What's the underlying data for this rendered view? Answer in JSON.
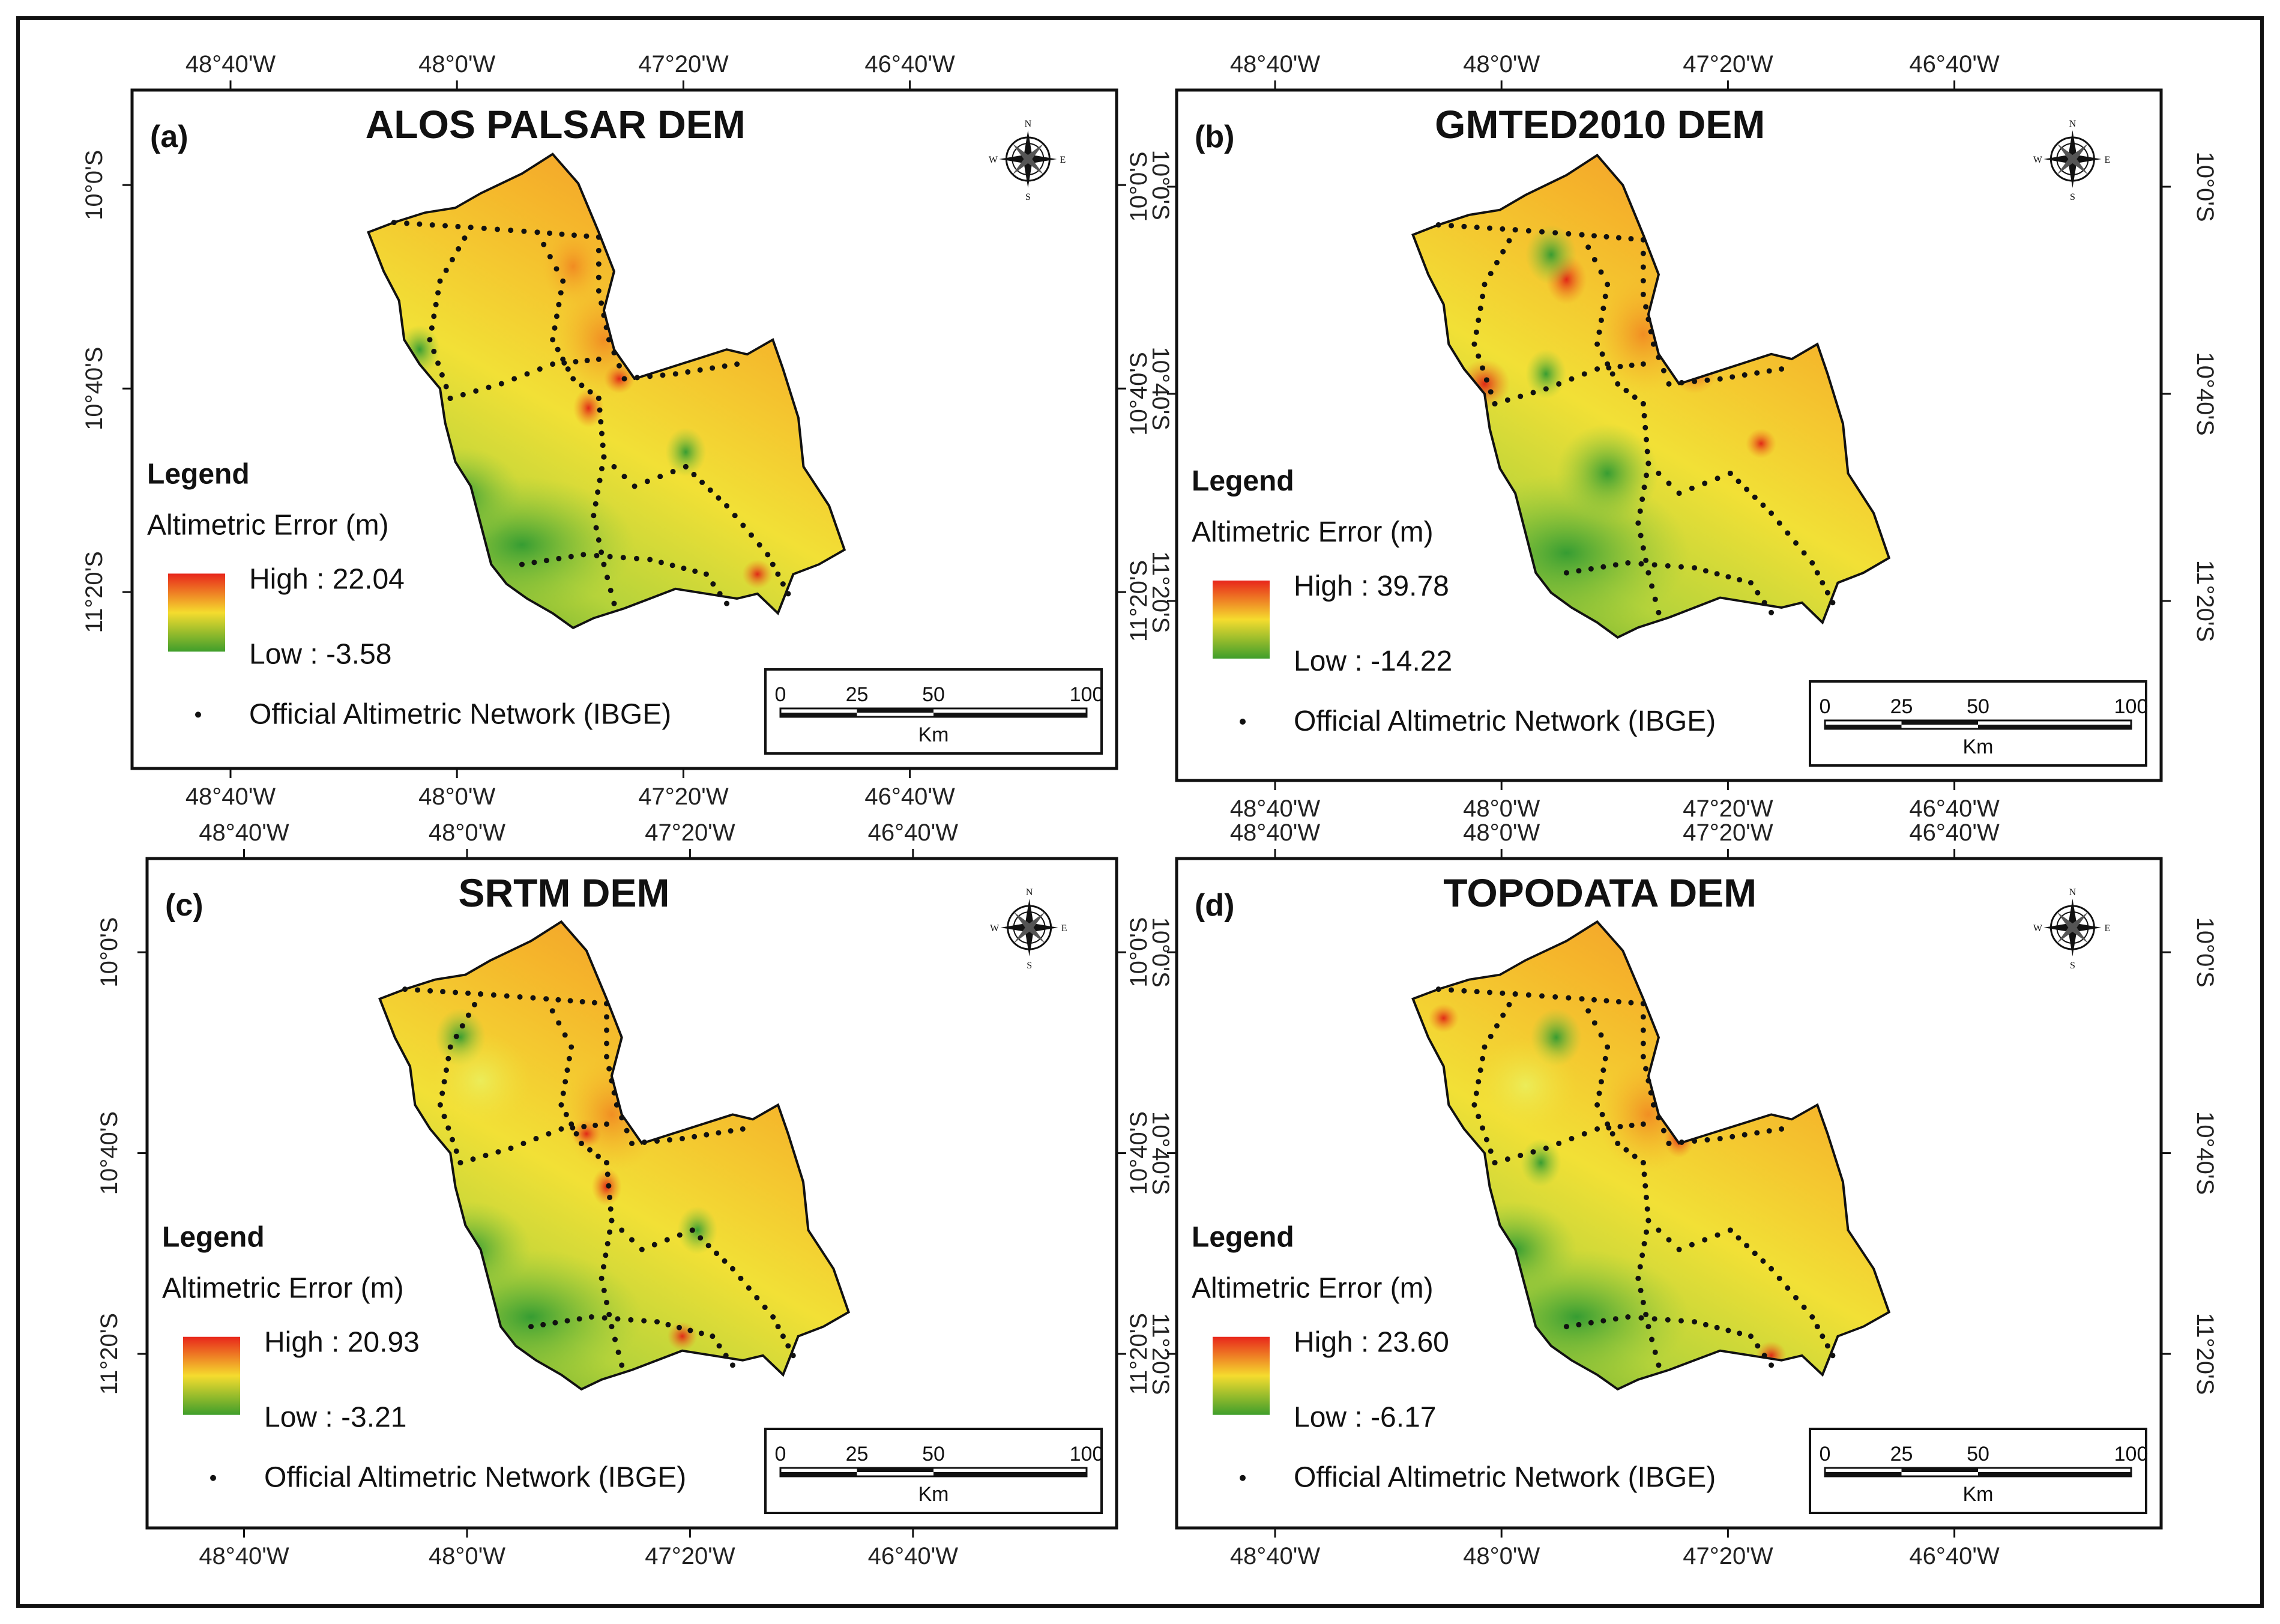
{
  "colors": {
    "high": "#e8261b",
    "mid": "#f5dc2e",
    "low": "#3f9e2b",
    "border": "#111111"
  },
  "legend": {
    "title": "Legend",
    "subtitle": "Altimetric Error (m)",
    "network_label": "Official Altimetric Network (IBGE)"
  },
  "axes": {
    "lon_labels": [
      "48°40'W",
      "48°0'W",
      "47°20'W",
      "46°40'W"
    ],
    "lat_labels": [
      "10°0'S",
      "10°40'S",
      "11°20'S"
    ]
  },
  "scale_bar": {
    "ticks": [
      "0",
      "25",
      "50",
      "100"
    ],
    "unit": "Km"
  },
  "north_arrow": {
    "n": "N",
    "s": "S",
    "e": "E",
    "w": "W"
  },
  "panels": [
    {
      "letter": "(a)",
      "title": "ALOS PALSAR DEM",
      "high": "High : 22.04",
      "low": "Low : -3.58",
      "icon": "north-arrow-icon"
    },
    {
      "letter": "(b)",
      "title": "GMTED2010 DEM",
      "high": "High : 39.78",
      "low": "Low : -14.22",
      "icon": "north-arrow-icon"
    },
    {
      "letter": "(c)",
      "title": "SRTM DEM",
      "high": "High : 20.93",
      "low": "Low : -3.21",
      "icon": "north-arrow-icon"
    },
    {
      "letter": "(d)",
      "title": "TOPODATA DEM",
      "high": "High : 23.60",
      "low": "Low : -6.17",
      "icon": "north-arrow-icon"
    }
  ]
}
